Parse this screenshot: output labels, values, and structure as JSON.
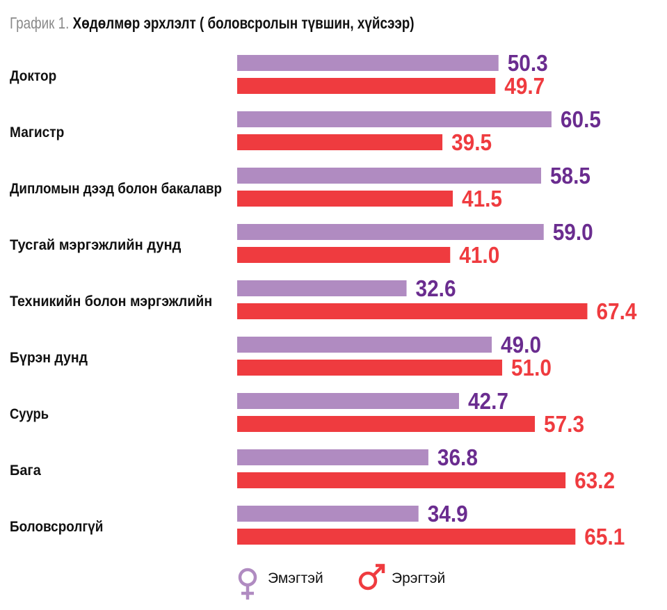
{
  "title": {
    "prefix": "График 1.",
    "main": "Хөдөлмөр эрхлэлт ( боловсролын түвшин, хүйсээр)"
  },
  "legend": {
    "female_label": "Эмэгтэй",
    "male_label": "Эрэгтэй",
    "female_icon": "female-symbol-icon",
    "male_icon": "male-symbol-icon"
  },
  "colors": {
    "female_bar": "#b08bc1",
    "female_text": "#6a2c8f",
    "male_bar": "#ef3b3f",
    "male_text": "#ef3b3f"
  },
  "chart_data": {
    "type": "bar",
    "orientation": "horizontal",
    "title": "Хөдөлмөр эрхлэлт ( боловсролын түвшин, хүйсээр)",
    "categories": [
      "Доктор",
      "Магистр",
      "Дипломын дээд болон бакалавр",
      "Тусгай мэргэжлийн дунд",
      "Техникийн болон мэргэжлийн",
      "Бүрэн дунд",
      "Суурь",
      "Бага",
      "Боловсролгүй"
    ],
    "series": [
      {
        "name": "Эмэгтэй",
        "values": [
          50.3,
          60.5,
          58.5,
          59.0,
          32.6,
          49.0,
          42.7,
          36.8,
          34.9
        ]
      },
      {
        "name": "Эрэгтэй",
        "values": [
          49.7,
          39.5,
          41.5,
          41.0,
          67.4,
          51.0,
          57.3,
          63.2,
          65.1
        ]
      }
    ],
    "data_labels": [
      [
        "50.3",
        "60.5",
        "58.5",
        "59.0",
        "32.6",
        "49.0",
        "42.7",
        "36.8",
        "34.9"
      ],
      [
        "49.7",
        "39.5",
        "41.5",
        "41.0",
        "67.4",
        "51.0",
        "57.3",
        "63.2",
        "65.1"
      ]
    ],
    "xlim": [
      0,
      100
    ],
    "grid": false,
    "legend_position": "bottom"
  }
}
